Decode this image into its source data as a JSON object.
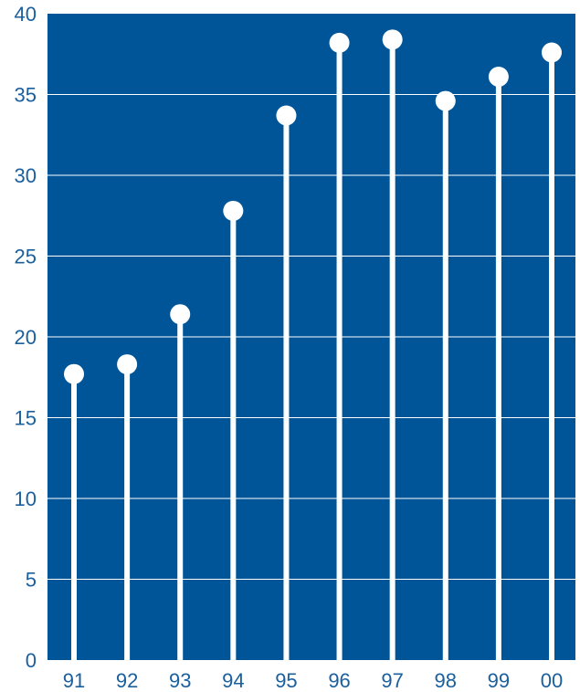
{
  "colors": {
    "plot_background": "#005599",
    "gridline": "#ffffff",
    "stem": "#ffffff",
    "marker": "#ffffff",
    "tick_text": "#1a5f9e"
  },
  "chart_data": {
    "type": "lollipop",
    "categories": [
      "91",
      "92",
      "93",
      "94",
      "95",
      "96",
      "97",
      "98",
      "99",
      "00"
    ],
    "values": [
      17.7,
      18.3,
      21.4,
      27.8,
      33.7,
      38.2,
      38.4,
      34.6,
      36.1,
      37.6
    ],
    "ylim": [
      0,
      40
    ],
    "yticks": [
      0,
      5,
      10,
      15,
      20,
      25,
      30,
      35,
      40
    ],
    "grid": true,
    "legend": "none"
  }
}
